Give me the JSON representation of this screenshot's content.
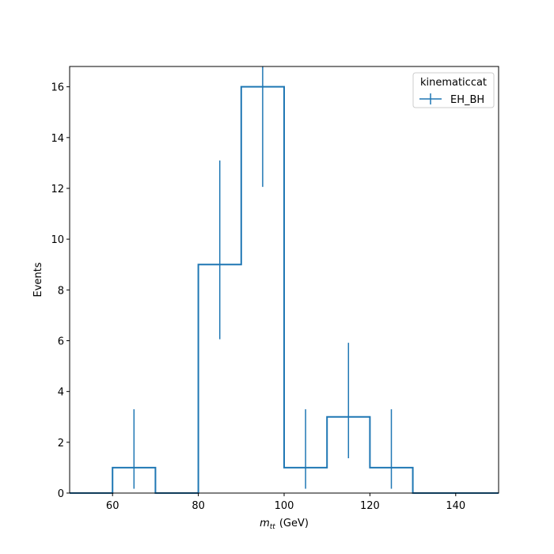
{
  "chart_data": {
    "type": "histogram",
    "title": "",
    "xlabel_main": "m",
    "xlabel_sub": "tt",
    "xlabel_unit": "(GeV)",
    "ylabel": "Events",
    "xlim": [
      50,
      150
    ],
    "ylim": [
      0,
      16.8
    ],
    "xticks": [
      60,
      80,
      100,
      120,
      140
    ],
    "yticks": [
      0,
      2,
      4,
      6,
      8,
      10,
      12,
      14,
      16
    ],
    "grid": false,
    "legend": {
      "title": "kinematiccat",
      "position": "top-right",
      "entries": [
        "EH_BH"
      ]
    },
    "series": [
      {
        "name": "EH_BH",
        "color": "#1f77b4",
        "bin_edges": [
          50,
          60,
          70,
          80,
          90,
          100,
          110,
          120,
          130,
          140,
          150
        ],
        "values": [
          0,
          1,
          0,
          9,
          16,
          1,
          3,
          1,
          0,
          0
        ],
        "errors": [
          {
            "x": 65,
            "low": 0.17,
            "high": 3.3
          },
          {
            "x": 85,
            "low": 6.06,
            "high": 13.1
          },
          {
            "x": 95,
            "low": 12.06,
            "high": 16.8
          },
          {
            "x": 105,
            "low": 0.17,
            "high": 3.3
          },
          {
            "x": 115,
            "low": 1.37,
            "high": 5.92
          },
          {
            "x": 125,
            "low": 0.17,
            "high": 3.3
          }
        ]
      }
    ]
  }
}
